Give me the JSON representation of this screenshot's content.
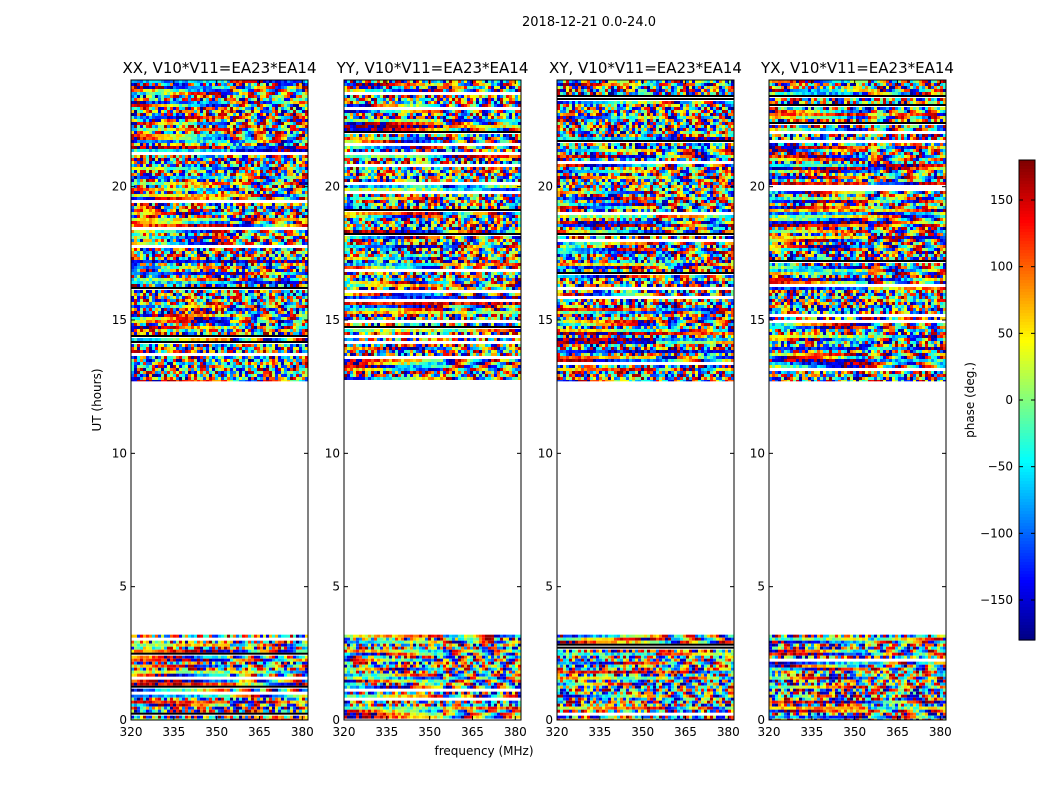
{
  "figure_title": "2018-12-21 0.0-24.0",
  "chart_data": {
    "type": "heatmap",
    "suptitle": "2018-12-21 0.0-24.0",
    "xlabel": "frequency (MHz)",
    "ylabel": "UT (hours)",
    "xlim": [
      320,
      382
    ],
    "ylim": [
      0,
      24
    ],
    "xticks": [
      320,
      335,
      350,
      365,
      380
    ],
    "yticks": [
      0,
      5,
      10,
      15,
      20
    ],
    "colorbar": {
      "label": "phase (deg.)",
      "range": [
        -180,
        180
      ],
      "ticks": [
        150,
        100,
        50,
        0,
        -50,
        -100,
        -150
      ],
      "tick_labels": [
        "150",
        "100",
        "50",
        "0",
        "−50",
        "−100",
        "−150"
      ],
      "colormap": "jet"
    },
    "panels": [
      {
        "title": "XX, V10*V11=EA23*EA14",
        "pol": "XX"
      },
      {
        "title": "YY, V10*V11=EA23*EA14",
        "pol": "YY"
      },
      {
        "title": "XY, V10*V11=EA23*EA14",
        "pol": "XY"
      },
      {
        "title": "YX, V10*V11=EA23*EA14",
        "pol": "YX"
      }
    ],
    "data_bands_ut_hours": [
      [
        0.0,
        3.2
      ],
      [
        12.7,
        24.0
      ]
    ],
    "blank_ut_hours": [
      [
        3.2,
        12.7
      ]
    ]
  }
}
